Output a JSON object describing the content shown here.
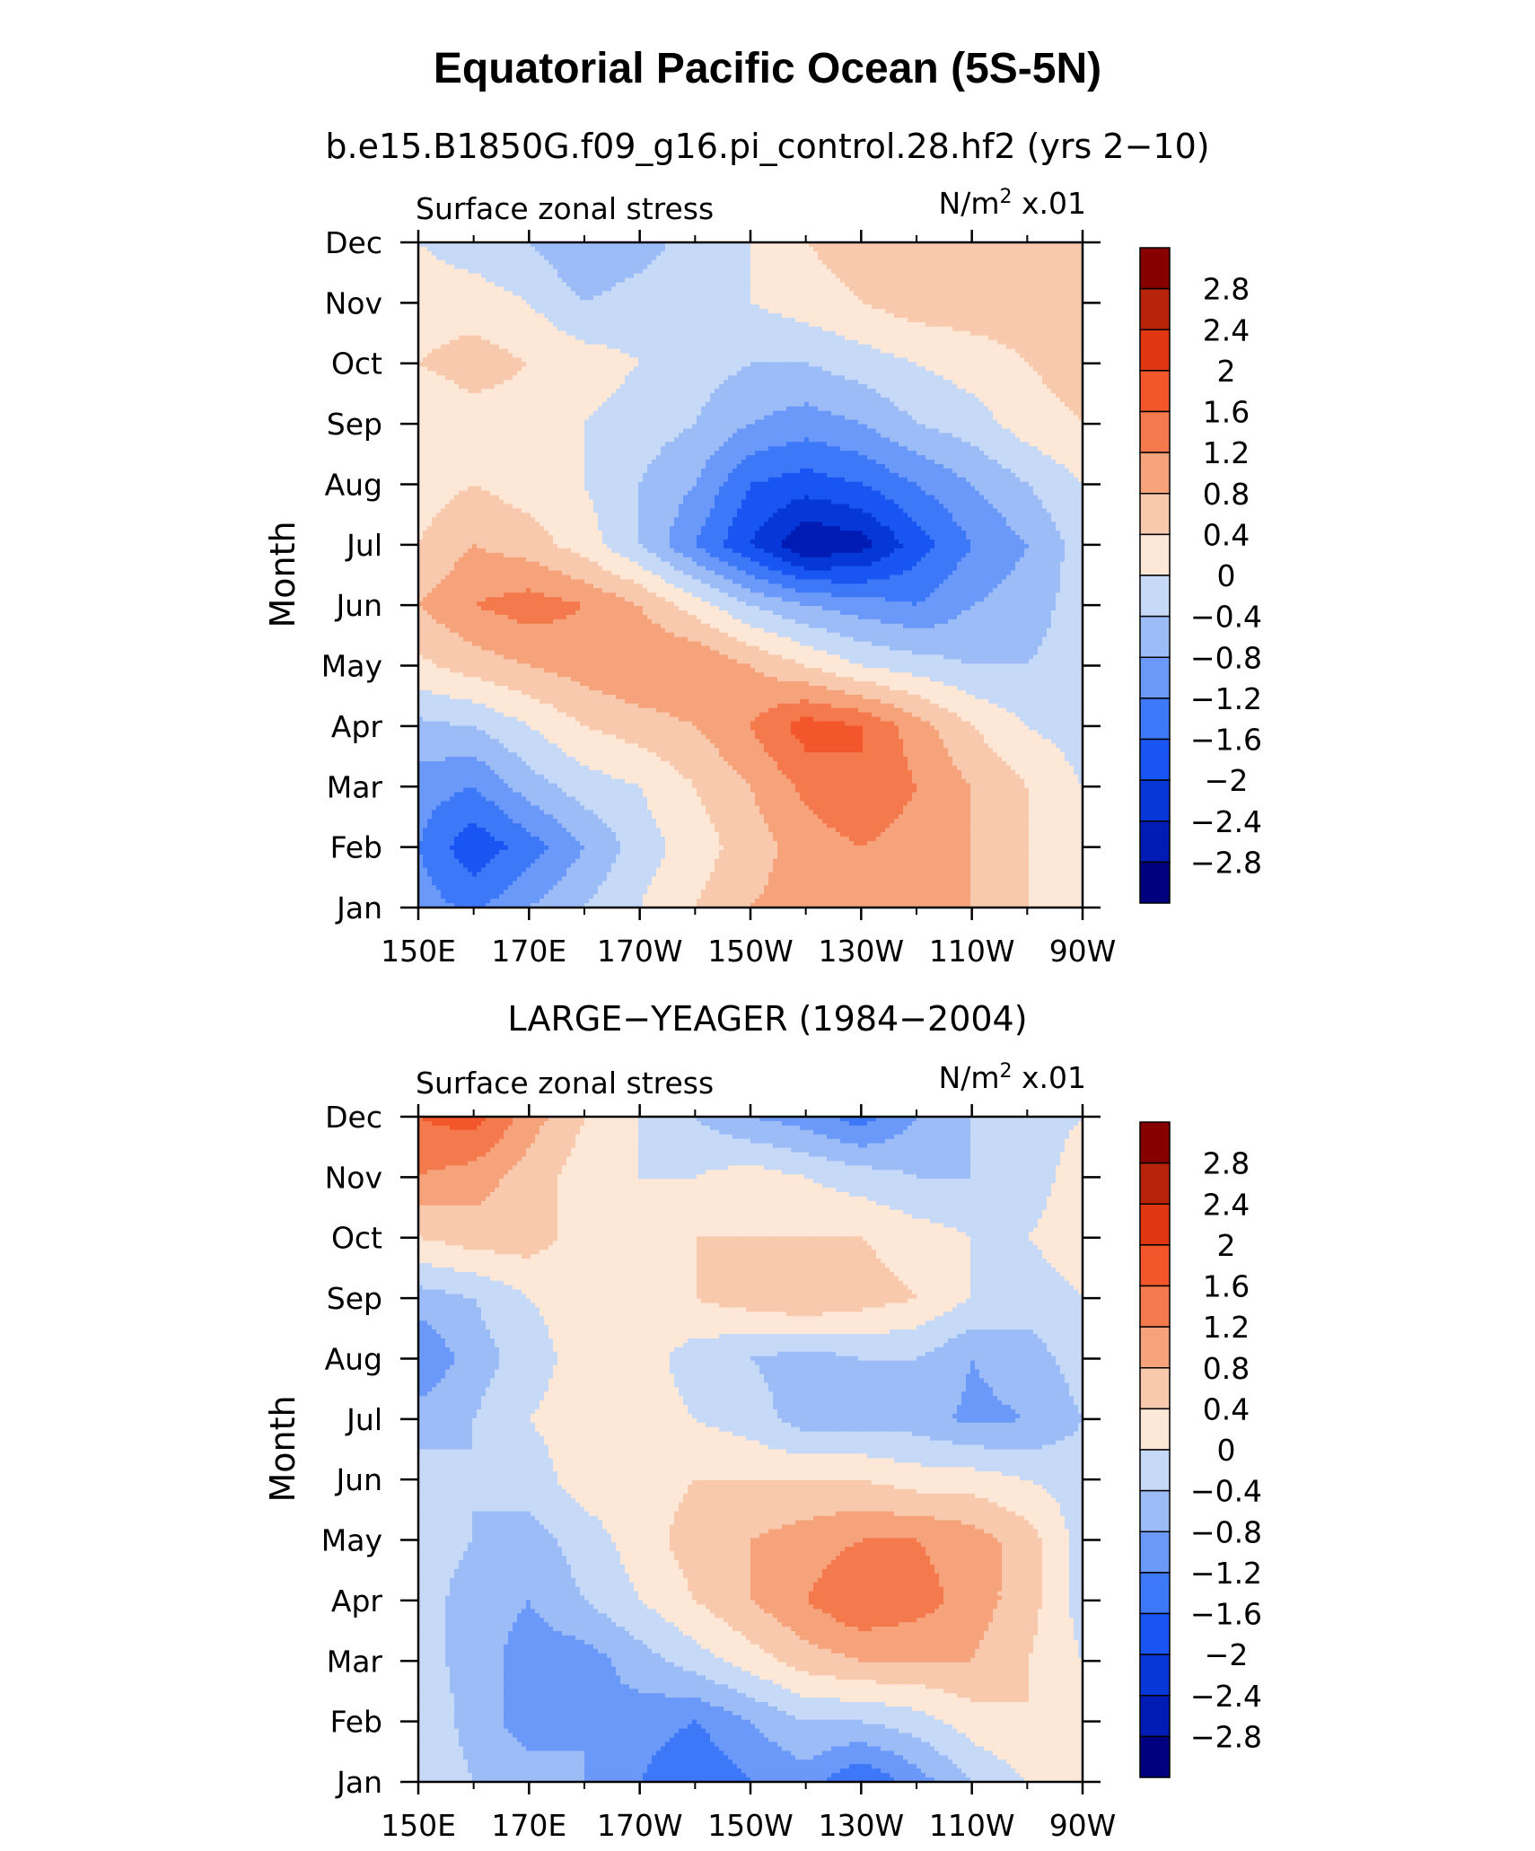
{
  "figure": {
    "title": "Equatorial Pacific Ocean (5S-5N)"
  },
  "chart_data": [
    {
      "type": "heatmap",
      "title": "b.e15.B1850G.f09_g16.pi_control.28.hf2 (yrs 2−10)",
      "left_string": "Surface zonal stress",
      "right_string_units": "N/m",
      "right_string_exp": "2",
      "right_string_scale": " x.01",
      "ylabel": "Month",
      "x_ticks": [
        "150E",
        "170E",
        "170W",
        "150W",
        "130W",
        "110W",
        "90W"
      ],
      "y_ticks": [
        "Jan",
        "Feb",
        "Mar",
        "Apr",
        "May",
        "Jun",
        "Jul",
        "Aug",
        "Sep",
        "Oct",
        "Nov",
        "Dec"
      ],
      "x_values": [
        "150E",
        "160E",
        "170E",
        "180",
        "170W",
        "160W",
        "150W",
        "140W",
        "130W",
        "120W",
        "110W",
        "100W",
        "90W"
      ],
      "z": [
        [
          -1.0,
          -1.3,
          -0.8,
          -0.4,
          0.0,
          0.4,
          0.8,
          1.0,
          1.0,
          1.0,
          0.8,
          0.4,
          0.0
        ],
        [
          -1.2,
          -1.9,
          -1.4,
          -0.8,
          -0.2,
          0.2,
          0.6,
          1.0,
          1.2,
          1.0,
          0.8,
          0.4,
          0.0
        ],
        [
          -1.0,
          -1.2,
          -0.6,
          -0.2,
          0.0,
          0.4,
          0.8,
          1.3,
          1.6,
          1.2,
          0.8,
          0.4,
          0.0
        ],
        [
          -0.5,
          -0.4,
          0.0,
          0.4,
          0.6,
          0.8,
          1.2,
          1.8,
          1.6,
          1.0,
          0.4,
          0.0,
          -0.2
        ],
        [
          0.3,
          0.6,
          0.8,
          1.0,
          1.2,
          1.2,
          0.8,
          0.4,
          0.0,
          -0.2,
          -0.4,
          -0.4,
          -0.2
        ],
        [
          0.8,
          1.2,
          1.4,
          1.2,
          0.8,
          0.2,
          -0.4,
          -0.8,
          -1.0,
          -1.2,
          -0.8,
          -0.6,
          -0.2
        ],
        [
          0.4,
          0.8,
          0.6,
          0.2,
          -0.4,
          -1.2,
          -2.0,
          -2.8,
          -2.6,
          -1.8,
          -1.2,
          -0.8,
          -0.2
        ],
        [
          0.2,
          0.4,
          0.2,
          0.0,
          -0.4,
          -0.8,
          -1.6,
          -1.8,
          -1.6,
          -1.2,
          -0.8,
          -0.4,
          0.0
        ],
        [
          0.0,
          0.2,
          0.2,
          0.0,
          -0.2,
          -0.4,
          -0.8,
          -1.0,
          -0.8,
          -0.4,
          -0.2,
          0.2,
          0.4
        ],
        [
          0.4,
          0.6,
          0.4,
          0.2,
          0.0,
          -0.2,
          -0.4,
          -0.4,
          -0.2,
          0.0,
          0.2,
          0.4,
          0.6
        ],
        [
          0.2,
          0.2,
          0.0,
          -0.4,
          -0.2,
          -0.2,
          0.0,
          0.2,
          0.4,
          0.6,
          0.6,
          0.6,
          0.4
        ],
        [
          0.0,
          -0.2,
          -0.4,
          -0.8,
          -0.6,
          -0.2,
          0.0,
          0.4,
          0.6,
          0.6,
          0.6,
          0.6,
          0.4
        ]
      ],
      "levels": [
        -2.8,
        -2.4,
        -2.0,
        -1.6,
        -1.2,
        -0.8,
        -0.4,
        0,
        0.4,
        0.8,
        1.2,
        1.6,
        2,
        2.4,
        2.8
      ],
      "colorbar_labels": [
        "2.8",
        "2.4",
        "2",
        "1.6",
        "1.2",
        "0.8",
        "0.4",
        "0",
        "−0.4",
        "−0.8",
        "−1.2",
        "−1.6",
        "−2",
        "−2.4",
        "−2.8"
      ]
    },
    {
      "type": "heatmap",
      "title": "LARGE−YEAGER (1984−2004)",
      "left_string": "Surface zonal stress",
      "right_string_units": "N/m",
      "right_string_exp": "2",
      "right_string_scale": " x.01",
      "ylabel": "Month",
      "x_ticks": [
        "150E",
        "170E",
        "170W",
        "150W",
        "130W",
        "110W",
        "90W"
      ],
      "y_ticks": [
        "Jan",
        "Feb",
        "Mar",
        "Apr",
        "May",
        "Jun",
        "Jul",
        "Aug",
        "Sep",
        "Oct",
        "Nov",
        "Dec"
      ],
      "x_values": [
        "150E",
        "160E",
        "170E",
        "180",
        "170W",
        "160W",
        "150W",
        "140W",
        "130W",
        "120W",
        "110W",
        "100W",
        "90W"
      ],
      "z": [
        [
          0.0,
          -0.4,
          -0.6,
          -0.8,
          -1.2,
          -1.6,
          -1.2,
          -1.0,
          -1.6,
          -1.0,
          -0.4,
          0.0,
          0.2
        ],
        [
          0.0,
          -0.6,
          -1.0,
          -0.8,
          -1.0,
          -1.2,
          -0.8,
          -0.4,
          -0.4,
          -0.2,
          0.2,
          0.4,
          0.0
        ],
        [
          -0.2,
          -0.6,
          -1.0,
          -1.0,
          -0.6,
          -0.2,
          0.2,
          0.6,
          0.8,
          0.8,
          0.8,
          0.4,
          0.0
        ],
        [
          -0.2,
          -0.6,
          -0.8,
          -0.4,
          0.0,
          0.4,
          0.8,
          1.2,
          1.6,
          1.4,
          1.0,
          0.6,
          -0.2
        ],
        [
          -0.2,
          -0.4,
          -0.6,
          -0.2,
          0.2,
          0.6,
          0.8,
          1.0,
          1.2,
          1.2,
          1.0,
          0.6,
          -0.2
        ],
        [
          -0.2,
          -0.4,
          -0.2,
          0.2,
          0.2,
          0.4,
          0.4,
          0.4,
          0.4,
          0.2,
          0.2,
          0.0,
          -0.2
        ],
        [
          -0.6,
          -0.4,
          0.0,
          0.2,
          0.2,
          0.0,
          -0.2,
          -0.6,
          -0.6,
          -0.6,
          -0.9,
          -0.8,
          -0.4
        ],
        [
          -1.2,
          -0.6,
          -0.2,
          0.2,
          0.2,
          -0.2,
          -0.4,
          -0.6,
          -0.4,
          -0.4,
          -0.8,
          -0.6,
          -0.2
        ],
        [
          -0.6,
          -0.4,
          0.0,
          0.2,
          0.2,
          0.4,
          0.6,
          0.8,
          0.6,
          0.4,
          0.0,
          -0.2,
          0.0
        ],
        [
          0.4,
          0.6,
          0.6,
          0.2,
          0.2,
          0.4,
          0.4,
          0.4,
          0.4,
          0.2,
          0.0,
          0.0,
          0.2
        ],
        [
          1.2,
          1.0,
          0.6,
          0.2,
          0.0,
          0.0,
          0.2,
          0.0,
          -0.2,
          -0.4,
          -0.4,
          -0.2,
          0.2
        ],
        [
          1.6,
          1.8,
          1.0,
          0.4,
          0.0,
          -0.4,
          -0.8,
          -1.0,
          -1.4,
          -0.8,
          -0.4,
          -0.2,
          0.0
        ]
      ],
      "levels": [
        -2.8,
        -2.4,
        -2.0,
        -1.6,
        -1.2,
        -0.8,
        -0.4,
        0,
        0.4,
        0.8,
        1.2,
        1.6,
        2,
        2.4,
        2.8
      ],
      "colorbar_labels": [
        "2.8",
        "2.4",
        "2",
        "1.6",
        "1.2",
        "0.8",
        "0.4",
        "0",
        "−0.4",
        "−0.8",
        "−1.2",
        "−1.6",
        "−2",
        "−2.4",
        "−2.8"
      ]
    }
  ],
  "colors": {
    "palette": [
      "#00007f",
      "#001cb4",
      "#0638d8",
      "#1955f2",
      "#3d78f9",
      "#6b99f9",
      "#9bbcf7",
      "#c6daf8",
      "#fde7d6",
      "#f8c9ac",
      "#f6a27b",
      "#f47a4e",
      "#f2562a",
      "#df3712",
      "#b8240a",
      "#870000"
    ]
  }
}
